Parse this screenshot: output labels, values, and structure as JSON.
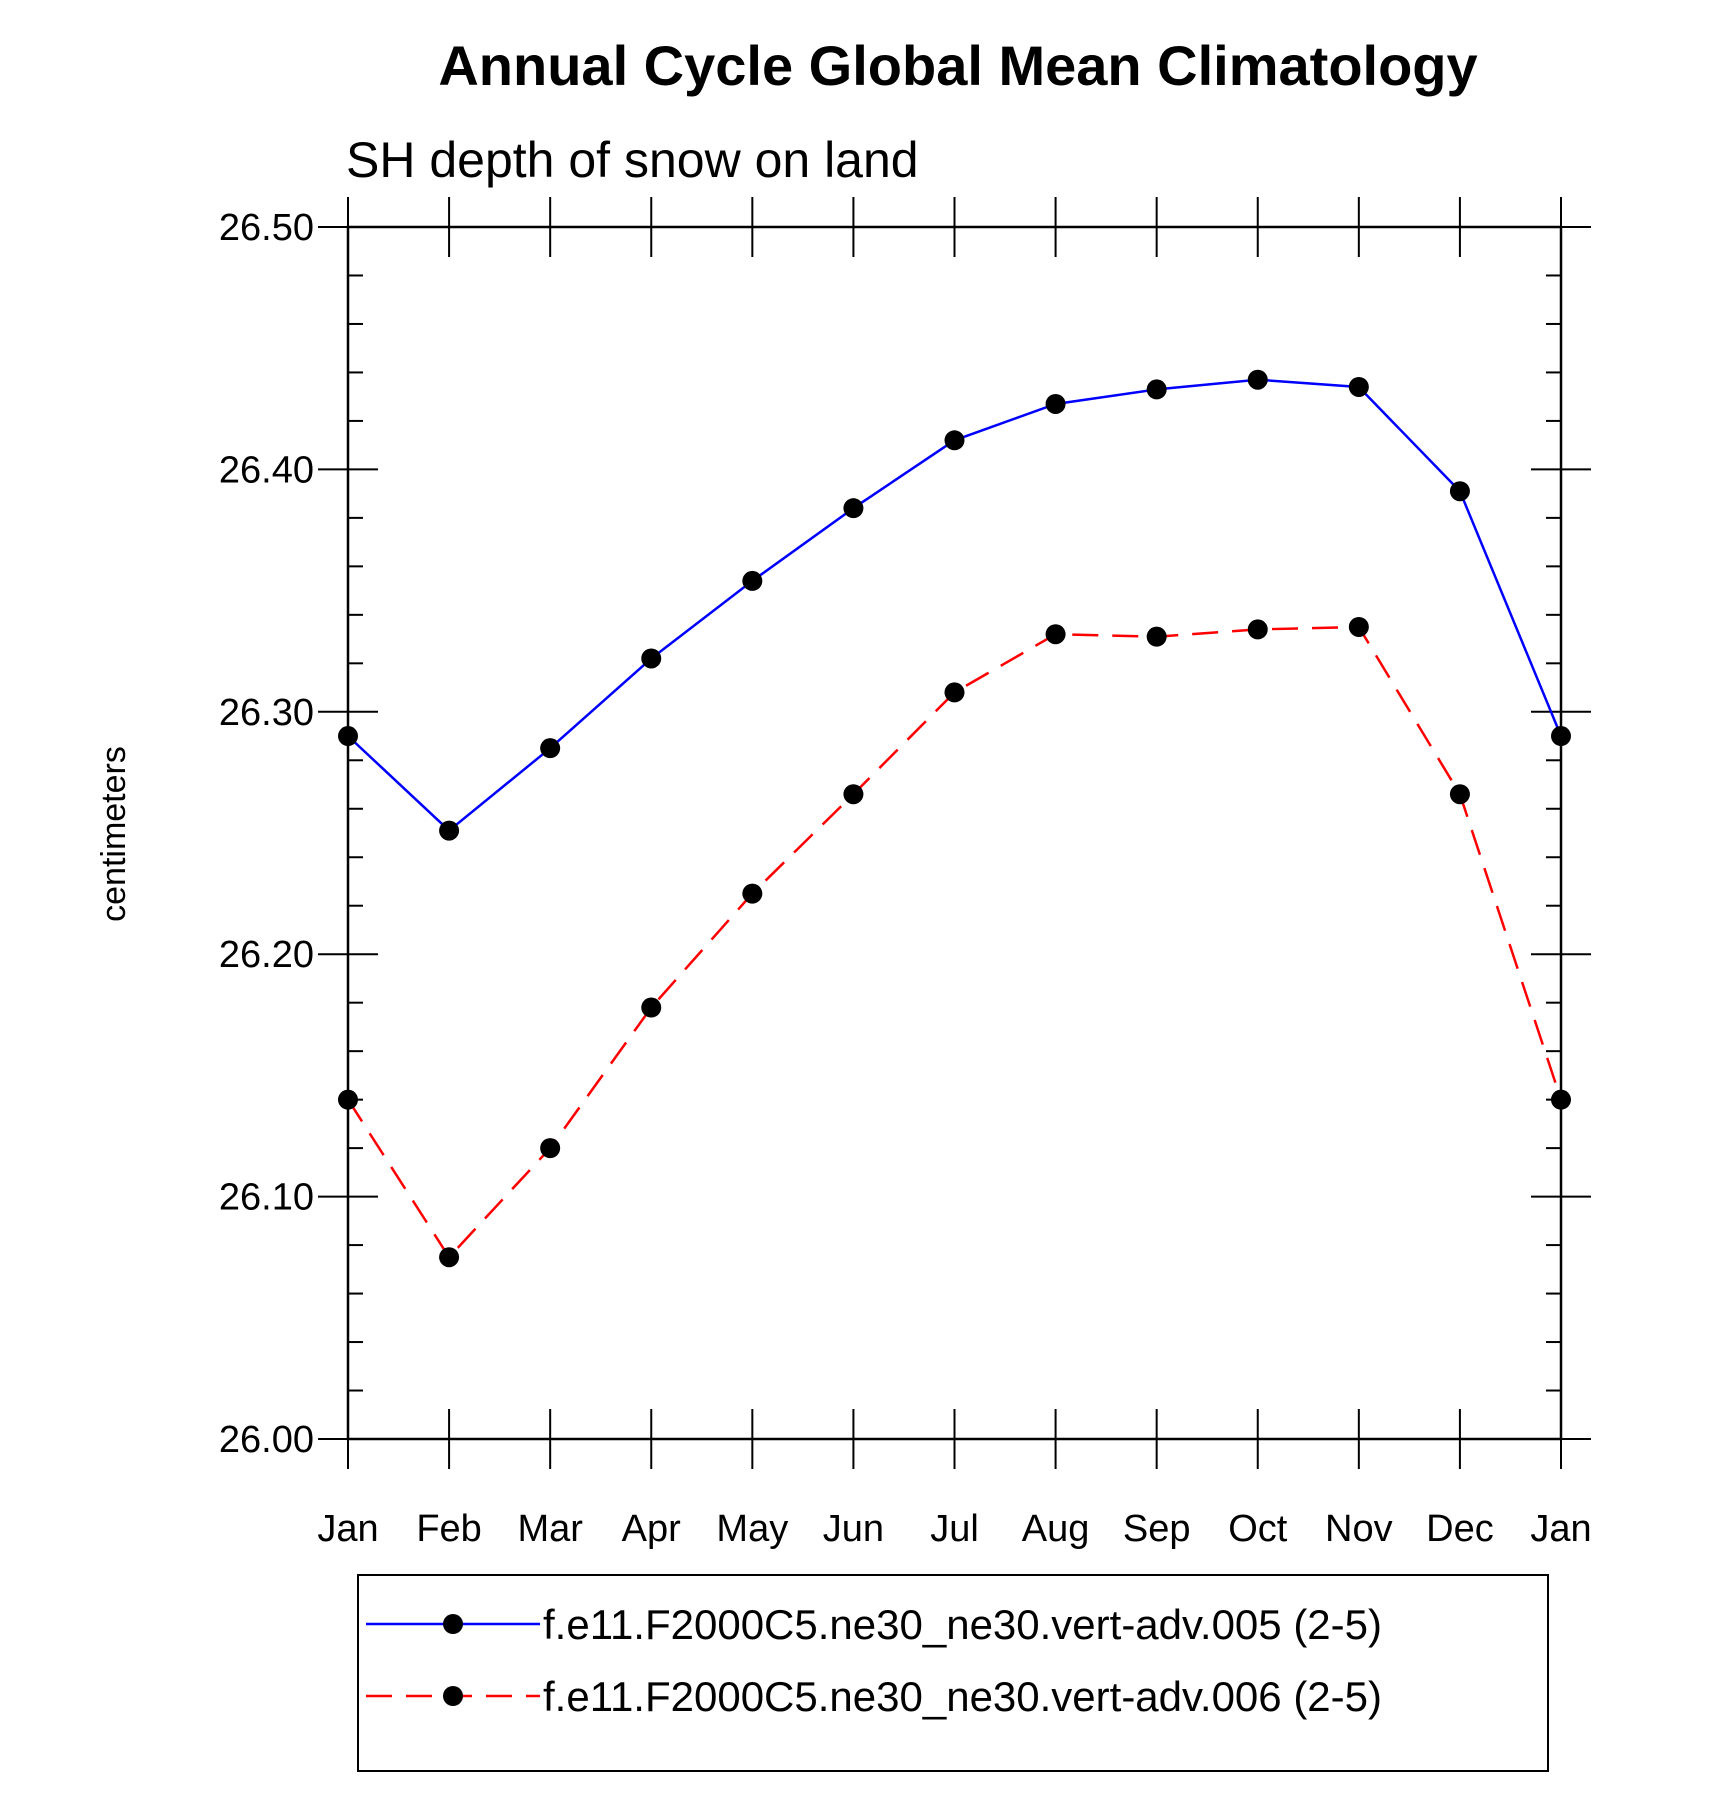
{
  "chart_data": {
    "type": "line",
    "title": "Annual Cycle Global Mean Climatology",
    "subtitle": "SH depth of snow on land",
    "xlabel": "",
    "ylabel": "centimeters",
    "categories": [
      "Jan",
      "Feb",
      "Mar",
      "Apr",
      "May",
      "Jun",
      "Jul",
      "Aug",
      "Sep",
      "Oct",
      "Nov",
      "Dec",
      "Jan"
    ],
    "ylim": [
      26.0,
      26.5
    ],
    "yticks": [
      "26.00",
      "26.10",
      "26.20",
      "26.30",
      "26.40",
      "26.50"
    ],
    "grid": false,
    "legend_position": "bottom",
    "series": [
      {
        "name": "f.e11.F2000C5.ne30_ne30.vert-adv.005 (2-5)",
        "color": "#0000ff",
        "line_style": "solid",
        "marker": "filled-circle",
        "values": [
          26.29,
          26.251,
          26.285,
          26.322,
          26.354,
          26.384,
          26.412,
          26.427,
          26.433,
          26.437,
          26.434,
          26.391,
          26.29
        ]
      },
      {
        "name": "f.e11.F2000C5.ne30_ne30.vert-adv.006 (2-5)",
        "color": "#ff0000",
        "line_style": "dashed",
        "marker": "filled-circle",
        "values": [
          26.14,
          26.075,
          26.12,
          26.178,
          26.225,
          26.266,
          26.308,
          26.332,
          26.331,
          26.334,
          26.335,
          26.266,
          26.14
        ]
      }
    ]
  }
}
